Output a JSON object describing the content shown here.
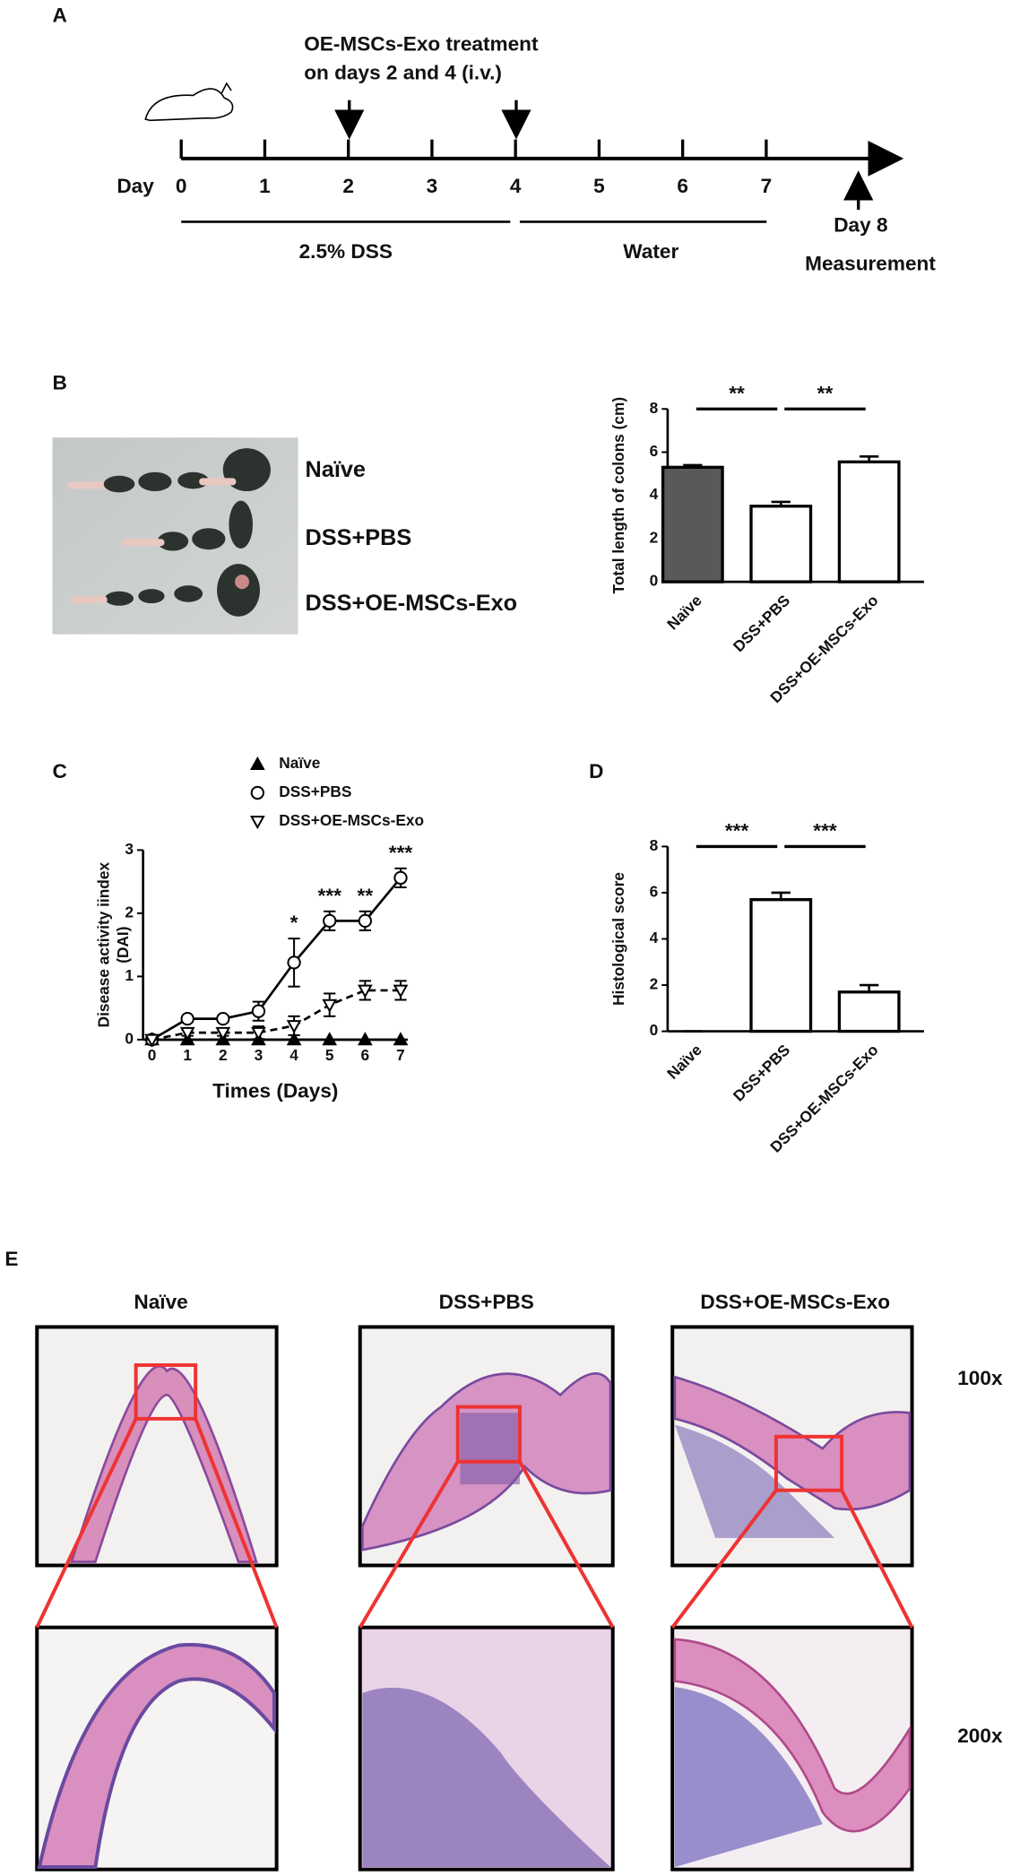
{
  "panel_labels": [
    "A",
    "B",
    "C",
    "D",
    "E"
  ],
  "timeline": {
    "title_lines": [
      "OE-MSCs-Exo treatment",
      "on days 2 and 4 (i.v.)"
    ],
    "day_label": "Day",
    "days": [
      "0",
      "1",
      "2",
      "3",
      "4",
      "5",
      "6",
      "7"
    ],
    "phases": [
      "2.5% DSS",
      "Water"
    ],
    "end_lines": [
      "Day 8",
      "Measurement"
    ]
  },
  "photo_labels": [
    "Naïve",
    "DSS+PBS",
    "DSS+OE-MSCs-Exo"
  ],
  "chart_data": [
    {
      "type": "bar",
      "ylabel": "Total length of colons (cm)",
      "categories": [
        "Naïve",
        "DSS+PBS",
        "DSS+OE-MSCs-Exo"
      ],
      "values": [
        5.3,
        3.5,
        5.55
      ],
      "errors": [
        0.1,
        0.2,
        0.25
      ],
      "colors": [
        "#58595b",
        "#ffffff",
        "#ffffff"
      ],
      "ylim": [
        0,
        8
      ],
      "yticks": [
        0,
        2,
        4,
        6,
        8
      ],
      "significance": [
        {
          "text": "**",
          "between": [
            "Naïve",
            "DSS+PBS"
          ]
        },
        {
          "text": "**",
          "between": [
            "DSS+PBS",
            "DSS+OE-MSCs-Exo"
          ]
        }
      ]
    },
    {
      "type": "line",
      "ylabel": [
        "Disease activity iindex",
        "(DAI)"
      ],
      "xlabel": "Times (Days)",
      "x": [
        0,
        1,
        2,
        3,
        4,
        5,
        6,
        7
      ],
      "xlim": [
        -0.25,
        7.2
      ],
      "xticks": [
        0,
        1,
        2,
        3,
        4,
        5,
        6,
        7
      ],
      "ylim": [
        0,
        3
      ],
      "yticks": [
        0,
        1,
        2,
        3
      ],
      "series": [
        {
          "name": "Naïve",
          "color": "#000000",
          "marker": "triangle-up",
          "marker_fill": "#000000",
          "line_style": "solid",
          "values": [
            0,
            0,
            0,
            0,
            0,
            0,
            0,
            0
          ]
        },
        {
          "name": "DSS+PBS",
          "color": "#000000",
          "marker": "circle",
          "marker_fill": "#ffffff",
          "line_style": "solid",
          "values": [
            0,
            0.33,
            0.33,
            0.45,
            1.22,
            1.88,
            1.88,
            2.56
          ],
          "errors": [
            0,
            0.03,
            0.03,
            0.15,
            0.38,
            0.15,
            0.15,
            0.15
          ]
        },
        {
          "name": "DSS+OE-MSCs-Exo",
          "color": "#000000",
          "marker": "triangle-down",
          "marker_fill": "#ffffff",
          "line_style": "dashed",
          "values": [
            0,
            0.11,
            0.11,
            0.11,
            0.22,
            0.55,
            0.78,
            0.78
          ],
          "errors": [
            0,
            0.05,
            0.05,
            0.1,
            0.15,
            0.18,
            0.15,
            0.15
          ]
        }
      ],
      "annotations": [
        {
          "text": "*",
          "x": 4
        },
        {
          "text": "***",
          "x": 5
        },
        {
          "text": "**",
          "x": 6
        },
        {
          "text": "***",
          "x": 7
        }
      ]
    },
    {
      "type": "bar",
      "ylabel": "Histological score",
      "categories": [
        "Naïve",
        "DSS+PBS",
        "DSS+OE-MSCs-Exo"
      ],
      "values": [
        0,
        5.7,
        1.7
      ],
      "errors": [
        0,
        0.3,
        0.3
      ],
      "colors": [
        "#ffffff",
        "#ffffff",
        "#ffffff"
      ],
      "ylim": [
        0,
        8
      ],
      "yticks": [
        0,
        2,
        4,
        6,
        8
      ],
      "significance": [
        {
          "text": "***",
          "between": [
            "Naïve",
            "DSS+PBS"
          ]
        },
        {
          "text": "***",
          "between": [
            "DSS+PBS",
            "DSS+OE-MSCs-Exo"
          ]
        }
      ]
    }
  ],
  "histology": {
    "columns": [
      "Naïve",
      "DSS+PBS",
      "DSS+OE-MSCs-Exo"
    ],
    "magnifications": [
      "100x",
      "200x"
    ]
  }
}
